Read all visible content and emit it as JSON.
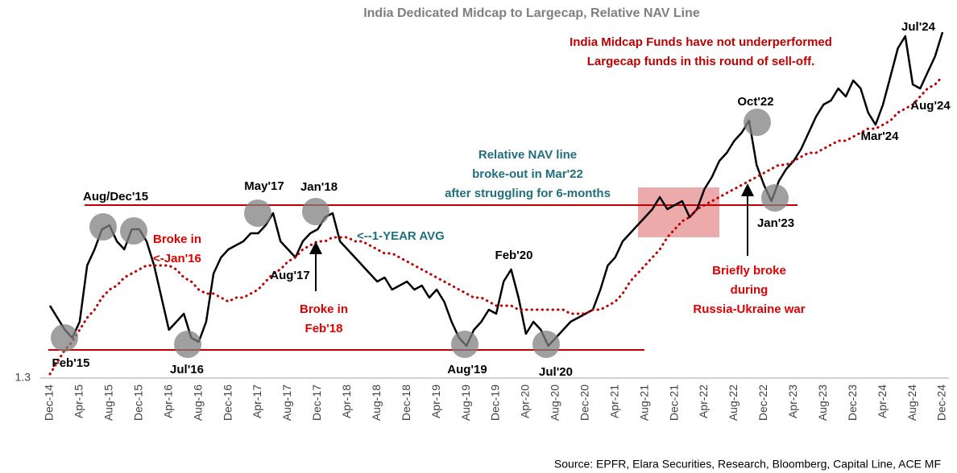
{
  "chart_data": {
    "type": "line",
    "title": "India Dedicated Midcap to Largecap, Relative NAV Line",
    "categories": [
      "Dec-14",
      null,
      null,
      null,
      "Apr-15",
      null,
      null,
      null,
      "Aug-15",
      null,
      null,
      null,
      "Dec-15",
      null,
      null,
      null,
      "Apr-16",
      null,
      null,
      null,
      "Aug-16",
      null,
      null,
      null,
      "Dec-16",
      null,
      null,
      null,
      "Apr-17",
      null,
      null,
      null,
      "Aug-17",
      null,
      null,
      null,
      "Dec-17",
      null,
      null,
      null,
      "Apr-18",
      null,
      null,
      null,
      "Aug-18",
      null,
      null,
      null,
      "Dec-18",
      null,
      null,
      null,
      "Apr-19",
      null,
      null,
      null,
      "Aug-19",
      null,
      null,
      null,
      "Dec-19",
      null,
      null,
      null,
      "Apr-20",
      null,
      null,
      null,
      "Aug-20",
      null,
      null,
      null,
      "Dec-20",
      null,
      null,
      null,
      "Apr-21",
      null,
      null,
      null,
      "Aug-21",
      null,
      null,
      null,
      "Dec-21",
      null,
      null,
      null,
      "Apr-22",
      null,
      null,
      null,
      "Aug-22",
      null,
      null,
      null,
      "Dec-22",
      null,
      null,
      null,
      "Apr-23",
      null,
      null,
      null,
      "Aug-23",
      null,
      null,
      null,
      "Dec-23",
      null,
      null,
      null,
      "Apr-24",
      null,
      null,
      null,
      "Aug-24",
      null,
      null,
      null,
      "Dec-24"
    ],
    "series": [
      {
        "color": "#000000",
        "style": "solid",
        "values": [
          1.48,
          1.45,
          1.42,
          1.4,
          1.44,
          1.58,
          1.62,
          1.67,
          1.68,
          1.64,
          1.62,
          1.67,
          1.67,
          1.64,
          1.58,
          1.5,
          1.42,
          1.44,
          1.46,
          1.4,
          1.39,
          1.44,
          1.56,
          1.6,
          1.62,
          1.63,
          1.64,
          1.66,
          1.66,
          1.68,
          1.71,
          1.64,
          1.62,
          1.6,
          1.64,
          1.66,
          1.67,
          1.7,
          1.71,
          1.64,
          1.62,
          1.6,
          1.58,
          1.56,
          1.54,
          1.55,
          1.52,
          1.53,
          1.54,
          1.52,
          1.53,
          1.5,
          1.52,
          1.49,
          1.44,
          1.4,
          1.38,
          1.42,
          1.44,
          1.47,
          1.46,
          1.54,
          1.57,
          1.5,
          1.41,
          1.44,
          1.42,
          1.38,
          1.4,
          1.42,
          1.44,
          1.45,
          1.46,
          1.47,
          1.52,
          1.58,
          1.6,
          1.64,
          1.66,
          1.68,
          1.7,
          1.72,
          1.75,
          1.72,
          1.73,
          1.74,
          1.7,
          1.72,
          1.77,
          1.8,
          1.84,
          1.86,
          1.89,
          1.91,
          1.94,
          1.83,
          1.78,
          1.74,
          1.79,
          1.82,
          1.84,
          1.87,
          1.91,
          1.95,
          1.98,
          1.99,
          2.02,
          2.0,
          2.04,
          2.02,
          1.96,
          1.93,
          1.98,
          2.05,
          2.12,
          2.15,
          2.03,
          2.02,
          2.06,
          2.1,
          2.16
        ]
      },
      {
        "color": "#c00000",
        "style": "dotted",
        "values": [
          1.31,
          1.34,
          1.37,
          1.39,
          1.42,
          1.45,
          1.47,
          1.5,
          1.52,
          1.53,
          1.55,
          1.56,
          1.57,
          1.58,
          1.58,
          1.58,
          1.58,
          1.57,
          1.55,
          1.54,
          1.52,
          1.51,
          1.51,
          1.5,
          1.49,
          1.5,
          1.5,
          1.51,
          1.52,
          1.54,
          1.56,
          1.57,
          1.59,
          1.6,
          1.62,
          1.63,
          1.64,
          1.64,
          1.65,
          1.65,
          1.65,
          1.64,
          1.64,
          1.63,
          1.62,
          1.61,
          1.61,
          1.6,
          1.59,
          1.58,
          1.57,
          1.56,
          1.55,
          1.54,
          1.53,
          1.52,
          1.51,
          1.5,
          1.5,
          1.49,
          1.48,
          1.48,
          1.48,
          1.47,
          1.47,
          1.47,
          1.47,
          1.47,
          1.47,
          1.47,
          1.46,
          1.46,
          1.46,
          1.47,
          1.47,
          1.48,
          1.49,
          1.51,
          1.54,
          1.56,
          1.58,
          1.6,
          1.62,
          1.65,
          1.67,
          1.69,
          1.7,
          1.72,
          1.73,
          1.74,
          1.75,
          1.76,
          1.77,
          1.78,
          1.79,
          1.8,
          1.81,
          1.82,
          1.83,
          1.83,
          1.84,
          1.85,
          1.86,
          1.86,
          1.87,
          1.88,
          1.89,
          1.89,
          1.9,
          1.91,
          1.92,
          1.92,
          1.93,
          1.94,
          1.96,
          1.97,
          1.98,
          2.0,
          2.02,
          2.03,
          2.05
        ]
      }
    ],
    "ylim": [
      1.3,
      2.2
    ],
    "yticks": [
      1.3
    ],
    "annotations": [
      {
        "color": "#c00000",
        "lines": [
          "India Midcap Funds have not underperformed",
          "Largecap funds in this round of sell-off."
        ]
      },
      {
        "color": "#1f6f7f",
        "lines": [
          "Relative NAV line",
          "broke-out in Mar'22",
          "after struggling for 6-months"
        ]
      },
      {
        "color": "#1f6f7f",
        "lines": [
          "<--1-YEAR AVG"
        ]
      },
      {
        "color": "#e00000",
        "lines": [
          "Broke in",
          "<-Jan'16"
        ]
      },
      {
        "color": "#e00000",
        "lines": [
          "Broke in",
          "Feb'18"
        ]
      },
      {
        "color": "#e00000",
        "lines": [
          "Briefly broke",
          "during",
          "Russia-Ukraine war"
        ]
      },
      {
        "color": "#000000",
        "lines": [
          "Aug/Dec'15"
        ]
      },
      {
        "color": "#000000",
        "lines": [
          "May'17"
        ]
      },
      {
        "color": "#000000",
        "lines": [
          "Jan'18"
        ]
      },
      {
        "color": "#000000",
        "lines": [
          "Aug'17"
        ]
      },
      {
        "color": "#000000",
        "lines": [
          "Feb'20"
        ]
      },
      {
        "color": "#000000",
        "lines": [
          "Feb'15"
        ]
      },
      {
        "color": "#000000",
        "lines": [
          "Jul'16"
        ]
      },
      {
        "color": "#000000",
        "lines": [
          "Aug'19"
        ]
      },
      {
        "color": "#000000",
        "lines": [
          "Jul'20"
        ]
      },
      {
        "color": "#000000",
        "lines": [
          "Oct'22"
        ]
      },
      {
        "color": "#000000",
        "lines": [
          "Jan'23"
        ]
      },
      {
        "color": "#000000",
        "lines": [
          "Mar'24"
        ]
      },
      {
        "color": "#000000",
        "lines": [
          "Jul'24"
        ]
      },
      {
        "color": "#000000",
        "lines": [
          "Aug'24"
        ]
      }
    ],
    "source": "Source: EPFR, Elara Securities, Research, Bloomberg, Capital Line, ACE MF"
  }
}
